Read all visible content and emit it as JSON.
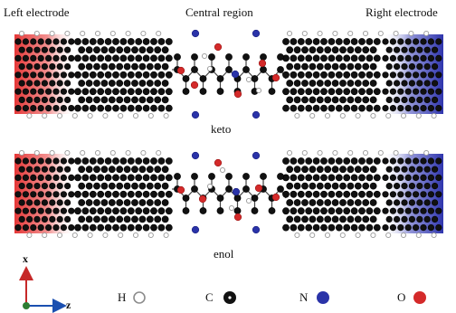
{
  "labels": {
    "left_electrode": "Left electrode",
    "central_region": "Central region",
    "right_electrode": "Right electrode",
    "top_caption": "keto",
    "bottom_caption": "enol"
  },
  "axes": {
    "x": "x",
    "z": "z"
  },
  "legend": [
    {
      "symbol": "H",
      "element": "hydrogen",
      "color": "#ffffff",
      "stroke": "#9a9a9a"
    },
    {
      "symbol": "C",
      "element": "carbon",
      "color": "#111111",
      "stroke": "#000000"
    },
    {
      "symbol": "N",
      "element": "nitrogen",
      "color": "#2a33a8",
      "stroke": "#1a2080"
    },
    {
      "symbol": "O",
      "element": "oxygen",
      "color": "#d42a2a",
      "stroke": "#991515"
    }
  ],
  "colors": {
    "left_electrode": "#e23b3b",
    "right_electrode": "#3a3fb5",
    "axis_x": "#c62828",
    "axis_z": "#1a4fb0",
    "axis_y": "#2e7d32"
  }
}
